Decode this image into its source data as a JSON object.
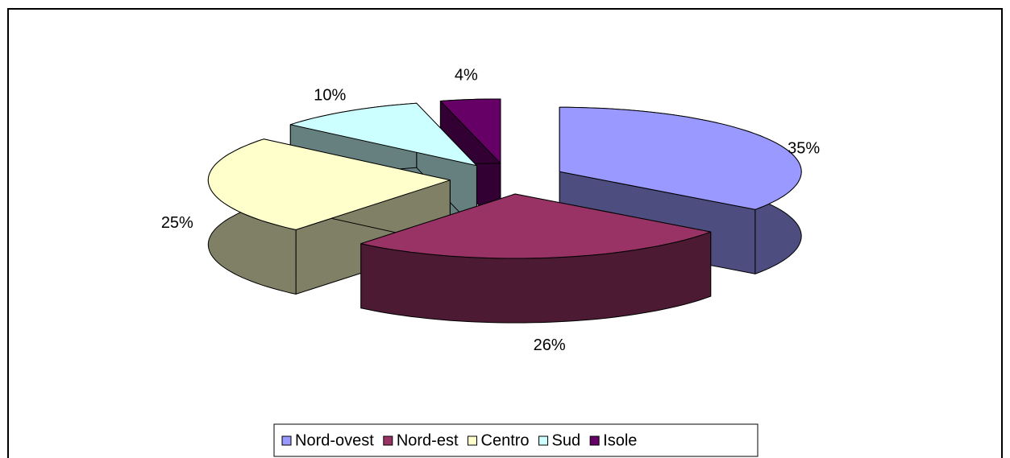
{
  "chart_data": {
    "type": "pie",
    "categories": [
      "Nord-ovest",
      "Nord-est",
      "Centro",
      "Sud",
      "Isole"
    ],
    "values": [
      35,
      26,
      25,
      10,
      4
    ],
    "value_labels": [
      "35%",
      "26%",
      "25%",
      "10%",
      "4%"
    ],
    "colors": [
      "#9999ff",
      "#993366",
      "#ffffcc",
      "#ccffff",
      "#660066"
    ],
    "legend": "bottom"
  }
}
